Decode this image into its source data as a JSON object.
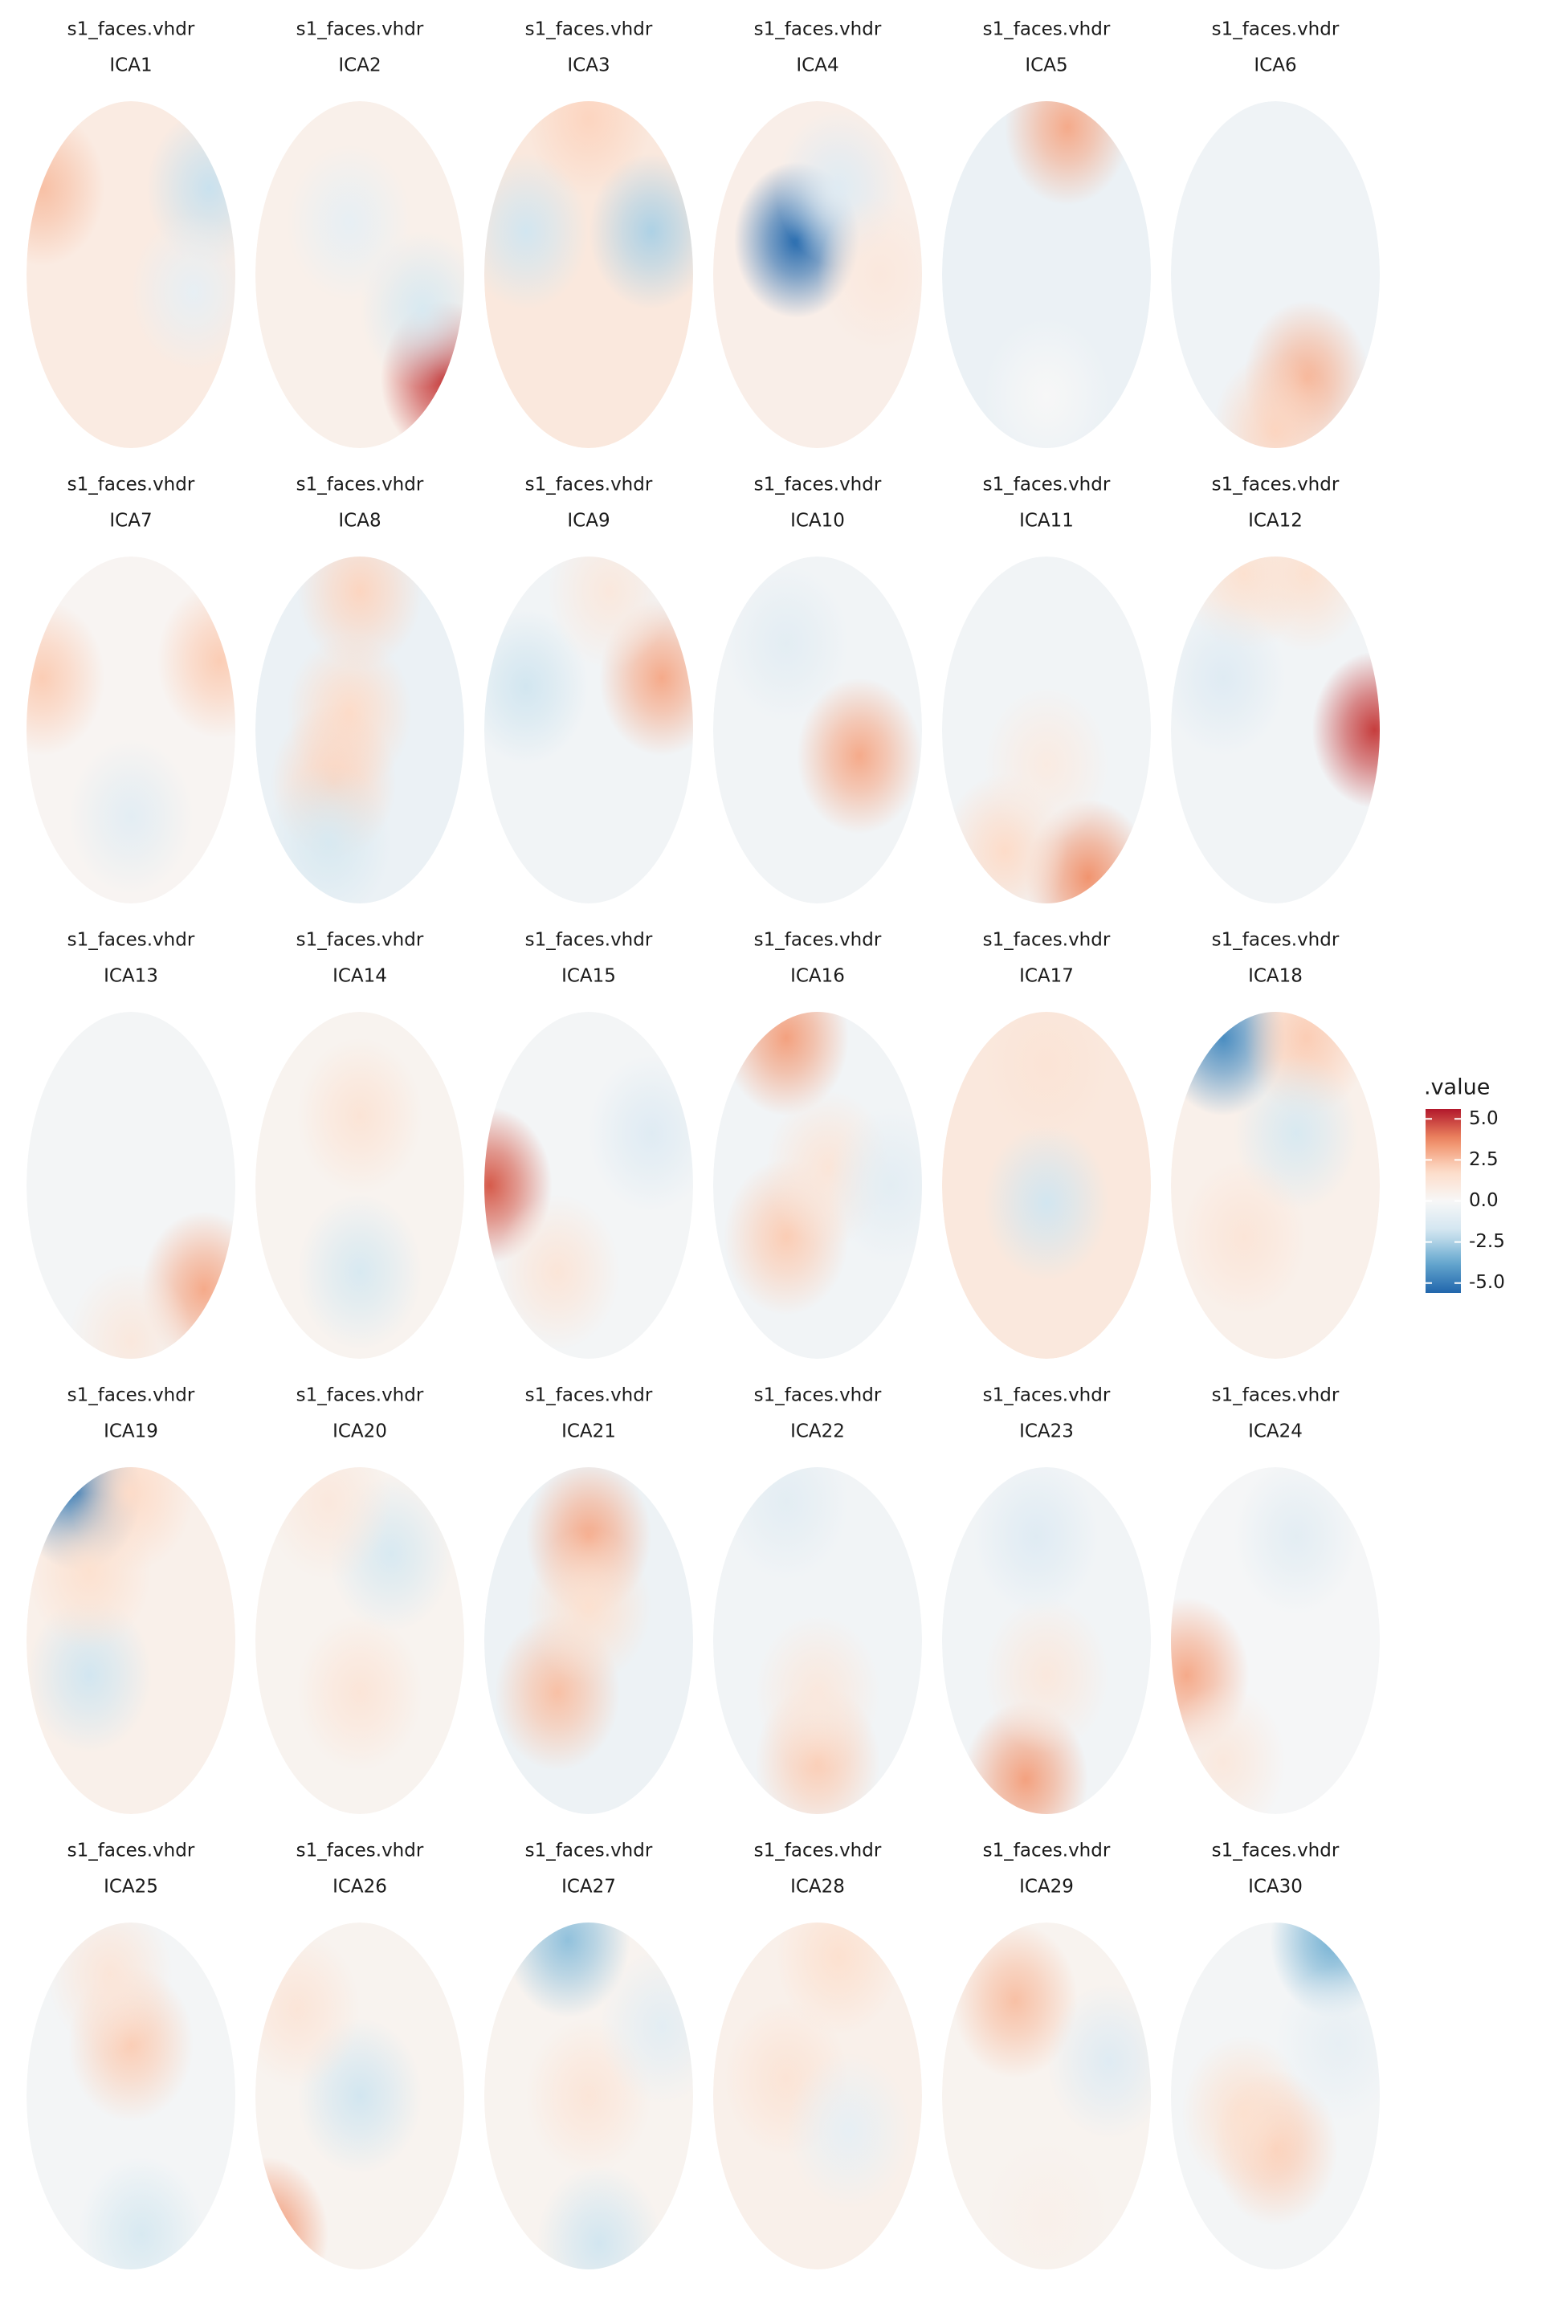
{
  "chart_data": {
    "type": "topoplot",
    "clim": [
      -5.6,
      5.6
    ],
    "legend": {
      "title": ".value",
      "ticks": [
        {
          "value": 5,
          "label": "5.0"
        },
        2.5,
        {
          "value": 0,
          "label": "0.0"
        },
        -2.5,
        {
          "value": -5,
          "label": "-5.0"
        }
      ]
    },
    "panels": [
      {
        "file": "s1_faces.vhdr",
        "component": "ICA1",
        "background": 0.8,
        "peaks": [
          {
            "x": -0.85,
            "y": 0.5,
            "value": 2.5
          },
          {
            "x": 0.75,
            "y": 0.5,
            "value": -2.0
          },
          {
            "x": 0.6,
            "y": -0.1,
            "value": -0.8
          }
        ]
      },
      {
        "file": "s1_faces.vhdr",
        "component": "ICA2",
        "background": 0.5,
        "peaks": [
          {
            "x": 0.8,
            "y": -0.6,
            "value": 5.0
          },
          {
            "x": 0.6,
            "y": -0.2,
            "value": -1.5
          },
          {
            "x": -0.1,
            "y": 0.3,
            "value": -0.8
          }
        ]
      },
      {
        "file": "s1_faces.vhdr",
        "component": "ICA3",
        "background": 1.0,
        "peaks": [
          {
            "x": 0.0,
            "y": 0.9,
            "value": 2.0
          },
          {
            "x": -0.6,
            "y": 0.25,
            "value": -1.8
          },
          {
            "x": 0.6,
            "y": 0.25,
            "value": -2.5
          }
        ]
      },
      {
        "file": "s1_faces.vhdr",
        "component": "ICA4",
        "background": 0.6,
        "peaks": [
          {
            "x": -0.2,
            "y": 0.2,
            "value": -5.5
          },
          {
            "x": 0.2,
            "y": 0.5,
            "value": -1.2
          },
          {
            "x": 0.6,
            "y": 0.0,
            "value": 1.0
          }
        ]
      },
      {
        "file": "s1_faces.vhdr",
        "component": "ICA5",
        "background": -0.6,
        "peaks": [
          {
            "x": 0.2,
            "y": 0.85,
            "value": 3.0
          },
          {
            "x": 0.0,
            "y": -0.7,
            "value": 0.0
          }
        ]
      },
      {
        "file": "s1_faces.vhdr",
        "component": "ICA6",
        "background": -0.4,
        "peaks": [
          {
            "x": 0.3,
            "y": -0.6,
            "value": 2.8
          },
          {
            "x": 0.0,
            "y": -0.9,
            "value": 2.0
          }
        ]
      },
      {
        "file": "s1_faces.vhdr",
        "component": "ICA7",
        "background": 0.2,
        "peaks": [
          {
            "x": -0.85,
            "y": 0.3,
            "value": 2.2
          },
          {
            "x": 0.85,
            "y": 0.4,
            "value": 2.2
          },
          {
            "x": 0.0,
            "y": -0.5,
            "value": -1.0
          }
        ]
      },
      {
        "file": "s1_faces.vhdr",
        "component": "ICA8",
        "background": -0.6,
        "peaks": [
          {
            "x": -0.1,
            "y": 0.1,
            "value": 1.8
          },
          {
            "x": 0.0,
            "y": 0.8,
            "value": 2.0
          },
          {
            "x": -0.25,
            "y": -0.3,
            "value": 2.0
          },
          {
            "x": -0.3,
            "y": -0.65,
            "value": -1.5
          }
        ]
      },
      {
        "file": "s1_faces.vhdr",
        "component": "ICA9",
        "background": -0.3,
        "peaks": [
          {
            "x": 0.7,
            "y": 0.3,
            "value": 3.0
          },
          {
            "x": -0.6,
            "y": 0.25,
            "value": -1.8
          },
          {
            "x": 0.2,
            "y": 0.8,
            "value": 1.0
          }
        ]
      },
      {
        "file": "s1_faces.vhdr",
        "component": "ICA10",
        "background": -0.3,
        "peaks": [
          {
            "x": 0.4,
            "y": -0.15,
            "value": 3.0
          },
          {
            "x": -0.3,
            "y": 0.5,
            "value": -1.0
          }
        ]
      },
      {
        "file": "s1_faces.vhdr",
        "component": "ICA11",
        "background": -0.3,
        "peaks": [
          {
            "x": 0.4,
            "y": -0.85,
            "value": 3.5
          },
          {
            "x": -0.4,
            "y": -0.7,
            "value": 1.8
          },
          {
            "x": 0.0,
            "y": -0.2,
            "value": 0.8
          }
        ]
      },
      {
        "file": "s1_faces.vhdr",
        "component": "ICA12",
        "background": -0.3,
        "peaks": [
          {
            "x": 0.95,
            "y": 0.0,
            "value": 5.0
          },
          {
            "x": -0.3,
            "y": 0.9,
            "value": 1.5
          },
          {
            "x": 0.3,
            "y": 0.9,
            "value": 1.5
          },
          {
            "x": -0.5,
            "y": 0.3,
            "value": -1.2
          }
        ]
      },
      {
        "file": "s1_faces.vhdr",
        "component": "ICA13",
        "background": -0.2,
        "peaks": [
          {
            "x": 0.7,
            "y": -0.6,
            "value": 3.0
          },
          {
            "x": 0.0,
            "y": -0.9,
            "value": 1.0
          }
        ]
      },
      {
        "file": "s1_faces.vhdr",
        "component": "ICA14",
        "background": 0.3,
        "peaks": [
          {
            "x": 0.0,
            "y": 0.4,
            "value": 1.3
          },
          {
            "x": 0.0,
            "y": -0.5,
            "value": -1.5
          }
        ]
      },
      {
        "file": "s1_faces.vhdr",
        "component": "ICA15",
        "background": -0.2,
        "peaks": [
          {
            "x": -0.95,
            "y": 0.0,
            "value": 4.5
          },
          {
            "x": -0.3,
            "y": -0.5,
            "value": 1.2
          },
          {
            "x": 0.6,
            "y": 0.3,
            "value": -1.2
          }
        ]
      },
      {
        "file": "s1_faces.vhdr",
        "component": "ICA16",
        "background": -0.3,
        "peaks": [
          {
            "x": -0.3,
            "y": 0.85,
            "value": 3.2
          },
          {
            "x": -0.3,
            "y": -0.3,
            "value": 2.2
          },
          {
            "x": 0.1,
            "y": 0.1,
            "value": 1.2
          },
          {
            "x": 0.7,
            "y": 0.0,
            "value": -1.0
          }
        ]
      },
      {
        "file": "s1_faces.vhdr",
        "component": "ICA17",
        "background": 1.0,
        "peaks": [
          {
            "x": 0.0,
            "y": -0.1,
            "value": -1.8
          },
          {
            "x": 0.0,
            "y": 0.7,
            "value": 1.3
          }
        ]
      },
      {
        "file": "s1_faces.vhdr",
        "component": "ICA18",
        "background": 0.5,
        "peaks": [
          {
            "x": -0.5,
            "y": 0.85,
            "value": -4.5
          },
          {
            "x": 0.3,
            "y": 0.85,
            "value": 2.2
          },
          {
            "x": 0.2,
            "y": 0.3,
            "value": -1.5
          },
          {
            "x": -0.3,
            "y": -0.3,
            "value": 1.2
          }
        ]
      },
      {
        "file": "s1_faces.vhdr",
        "component": "ICA19",
        "background": 0.5,
        "peaks": [
          {
            "x": -0.5,
            "y": 0.85,
            "value": -5.0
          },
          {
            "x": 0.0,
            "y": 0.85,
            "value": 1.8
          },
          {
            "x": -0.4,
            "y": -0.2,
            "value": -1.8
          },
          {
            "x": -0.4,
            "y": 0.4,
            "value": 1.5
          }
        ]
      },
      {
        "file": "s1_faces.vhdr",
        "component": "ICA20",
        "background": 0.3,
        "peaks": [
          {
            "x": 0.3,
            "y": 0.5,
            "value": -1.5
          },
          {
            "x": 0.0,
            "y": -0.3,
            "value": 1.2
          },
          {
            "x": -0.3,
            "y": 0.8,
            "value": 1.0
          }
        ]
      },
      {
        "file": "s1_faces.vhdr",
        "component": "ICA21",
        "background": -0.5,
        "peaks": [
          {
            "x": 0.0,
            "y": 0.6,
            "value": 3.0
          },
          {
            "x": -0.3,
            "y": -0.3,
            "value": 2.5
          },
          {
            "x": 0.0,
            "y": 0.2,
            "value": 1.5
          }
        ]
      },
      {
        "file": "s1_faces.vhdr",
        "component": "ICA22",
        "background": -0.3,
        "peaks": [
          {
            "x": 0.0,
            "y": -0.7,
            "value": 2.2
          },
          {
            "x": 0.0,
            "y": -0.3,
            "value": 1.0
          },
          {
            "x": -0.3,
            "y": 0.8,
            "value": -1.0
          }
        ]
      },
      {
        "file": "s1_faces.vhdr",
        "component": "ICA23",
        "background": -0.3,
        "peaks": [
          {
            "x": -0.2,
            "y": -0.8,
            "value": 3.2
          },
          {
            "x": 0.0,
            "y": -0.2,
            "value": 1.0
          },
          {
            "x": -0.1,
            "y": 0.6,
            "value": -1.2
          }
        ]
      },
      {
        "file": "s1_faces.vhdr",
        "component": "ICA24",
        "background": -0.1,
        "peaks": [
          {
            "x": -0.85,
            "y": -0.2,
            "value": 3.0
          },
          {
            "x": 0.2,
            "y": 0.6,
            "value": -1.0
          },
          {
            "x": -0.5,
            "y": -0.7,
            "value": 1.0
          }
        ]
      },
      {
        "file": "s1_faces.vhdr",
        "component": "ICA25",
        "background": -0.2,
        "peaks": [
          {
            "x": 0.0,
            "y": 0.3,
            "value": 2.2
          },
          {
            "x": -0.2,
            "y": 0.7,
            "value": 1.2
          },
          {
            "x": 0.1,
            "y": -0.8,
            "value": -1.5
          }
        ]
      },
      {
        "file": "s1_faces.vhdr",
        "component": "ICA26",
        "background": 0.3,
        "peaks": [
          {
            "x": -0.9,
            "y": -0.8,
            "value": 3.5
          },
          {
            "x": 0.0,
            "y": 0.0,
            "value": -1.8
          },
          {
            "x": -0.6,
            "y": 0.5,
            "value": 1.2
          }
        ]
      },
      {
        "file": "s1_faces.vhdr",
        "component": "ICA27",
        "background": 0.3,
        "peaks": [
          {
            "x": -0.2,
            "y": 0.9,
            "value": -3.0
          },
          {
            "x": 0.0,
            "y": 0.0,
            "value": 1.2
          },
          {
            "x": 0.1,
            "y": -0.85,
            "value": -1.8
          },
          {
            "x": 0.7,
            "y": 0.4,
            "value": -1.0
          }
        ]
      },
      {
        "file": "s1_faces.vhdr",
        "component": "ICA28",
        "background": 0.5,
        "peaks": [
          {
            "x": -0.3,
            "y": 0.1,
            "value": 1.3
          },
          {
            "x": 0.2,
            "y": 0.8,
            "value": 1.5
          },
          {
            "x": 0.3,
            "y": -0.2,
            "value": -0.8
          }
        ]
      },
      {
        "file": "s1_faces.vhdr",
        "component": "ICA29",
        "background": 0.3,
        "peaks": [
          {
            "x": -0.3,
            "y": 0.55,
            "value": 2.5
          },
          {
            "x": 0.6,
            "y": 0.2,
            "value": -1.2
          },
          {
            "x": 0.0,
            "y": -0.7,
            "value": 0.5
          }
        ]
      },
      {
        "file": "s1_faces.vhdr",
        "component": "ICA30",
        "background": -0.2,
        "peaks": [
          {
            "x": 0.55,
            "y": 0.9,
            "value": -3.5
          },
          {
            "x": 0.0,
            "y": -0.3,
            "value": 2.2
          },
          {
            "x": -0.3,
            "y": -0.1,
            "value": 1.5
          },
          {
            "x": 0.6,
            "y": 0.3,
            "value": -0.8
          }
        ]
      }
    ]
  }
}
